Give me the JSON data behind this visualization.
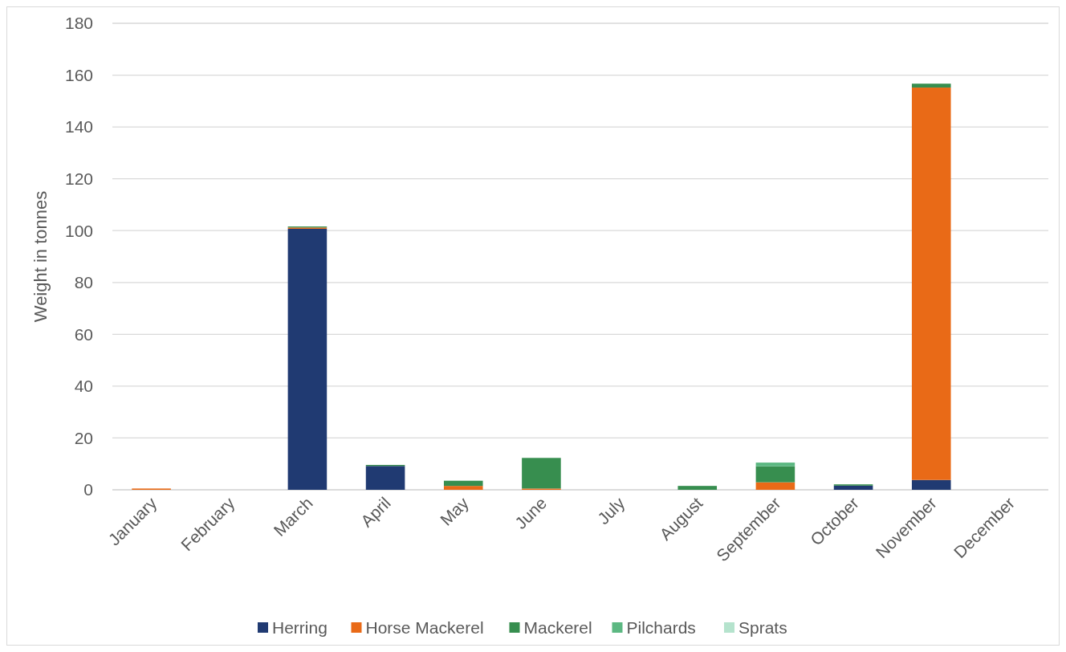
{
  "chart_data": {
    "type": "bar",
    "stacked": true,
    "ylabel": "Weight in tonnes",
    "categories": [
      "January",
      "February",
      "March",
      "April",
      "May",
      "June",
      "July",
      "August",
      "September",
      "October",
      "November",
      "December"
    ],
    "series": [
      {
        "name": "Herring",
        "color": "#203a72",
        "values": [
          0,
          0,
          100.7,
          9.2,
          0,
          0,
          0,
          0,
          0,
          1.6,
          3.8,
          0
        ]
      },
      {
        "name": "Horse Mackerel",
        "color": "#e96a17",
        "values": [
          0.5,
          0,
          0.5,
          0,
          1.5,
          0.5,
          0,
          0,
          2.9,
          0,
          151.4,
          0
        ]
      },
      {
        "name": "Mackerel",
        "color": "#378e4f",
        "values": [
          0,
          0,
          0.4,
          0.4,
          2.0,
          11.8,
          0,
          1.5,
          6.2,
          0.5,
          1.5,
          0
        ]
      },
      {
        "name": "Pilchards",
        "color": "#5cb882",
        "values": [
          0,
          0,
          0,
          0,
          0,
          0,
          0,
          0,
          1.4,
          0,
          0,
          0
        ]
      },
      {
        "name": "Sprats",
        "color": "#b5e3cd",
        "values": [
          0,
          null,
          0,
          0,
          0,
          0,
          0,
          0,
          0,
          0,
          0,
          null
        ]
      }
    ],
    "ylim": [
      0,
      180
    ],
    "yticks": [
      0,
      20,
      40,
      60,
      80,
      100,
      120,
      140,
      160,
      180
    ],
    "grid": "y",
    "legend": "bottom"
  }
}
